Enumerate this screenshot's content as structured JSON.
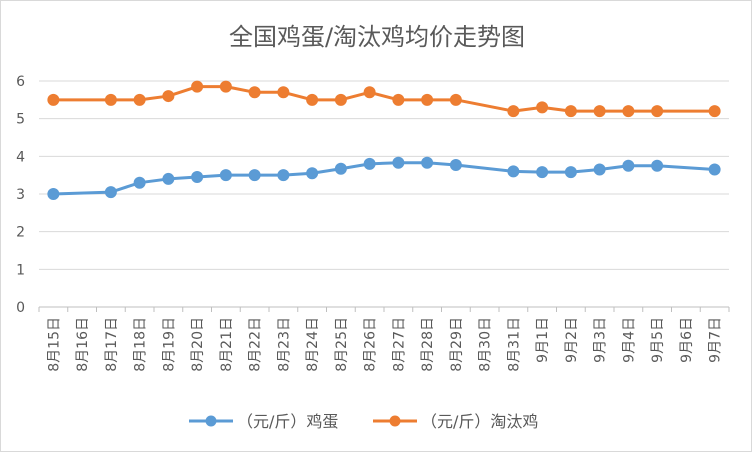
{
  "chart_data": {
    "type": "line",
    "title": "全国鸡蛋/淘汰鸡均价走势图",
    "categories": [
      "8月15日",
      "8月16日",
      "8月17日",
      "8月18日",
      "8月19日",
      "8月20日",
      "8月21日",
      "8月22日",
      "8月23日",
      "8月24日",
      "8月25日",
      "8月26日",
      "8月27日",
      "8月28日",
      "8月29日",
      "8月30日",
      "8月31日",
      "9月1日",
      "9月2日",
      "9月3日",
      "9月4日",
      "9月5日",
      "9月6日",
      "9月7日"
    ],
    "yticks": [
      "0",
      "1",
      "2",
      "3",
      "4",
      "5",
      "6"
    ],
    "ylim": [
      0,
      6
    ],
    "grid": true,
    "legend_position": "bottom",
    "series": [
      {
        "name": "（元/斤）鸡蛋",
        "color": "#5b9bd5",
        "values": [
          3.0,
          null,
          3.05,
          3.3,
          3.4,
          3.45,
          3.5,
          3.5,
          3.5,
          3.55,
          3.67,
          3.8,
          3.83,
          3.83,
          3.77,
          null,
          3.6,
          3.58,
          3.58,
          3.65,
          3.75,
          3.75,
          null,
          3.65
        ]
      },
      {
        "name": "（元/斤）淘汰鸡",
        "color": "#ed7d31",
        "values": [
          5.5,
          null,
          5.5,
          5.5,
          5.6,
          5.85,
          5.85,
          5.7,
          5.7,
          5.5,
          5.5,
          5.7,
          5.5,
          5.5,
          5.5,
          null,
          5.2,
          5.3,
          5.2,
          5.2,
          5.2,
          5.2,
          null,
          5.2
        ]
      }
    ]
  }
}
